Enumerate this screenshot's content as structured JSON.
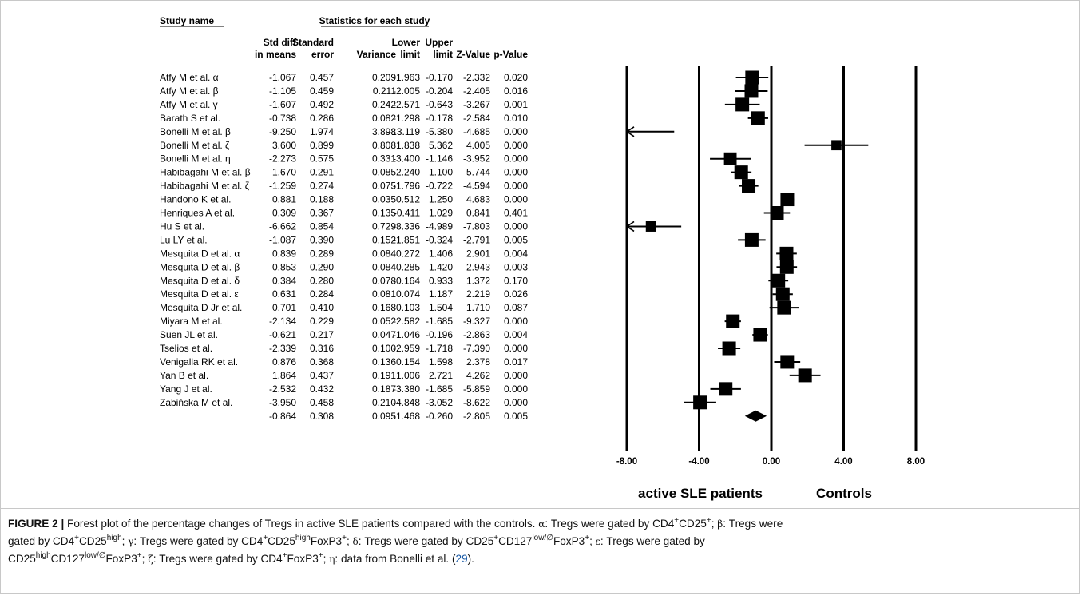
{
  "chart_data": {
    "type": "forest",
    "group_header": "Statistics for each study",
    "study_column_header": "Study name",
    "column_headers": [
      [
        "Std diff",
        "in means"
      ],
      [
        "Standard",
        "error"
      ],
      [
        "",
        "Variance"
      ],
      [
        "Lower",
        "limit"
      ],
      [
        "Upper",
        "limit"
      ],
      [
        "",
        "Z-Value"
      ],
      [
        "",
        "p-Value"
      ]
    ],
    "rows": [
      {
        "study": "Atfy M et al. α",
        "std_diff": "-1.067",
        "se": "0.457",
        "variance": "0.209",
        "lower": "-1.963",
        "upper": "-0.170",
        "z": "-2.332",
        "p": "0.020"
      },
      {
        "study": "Atfy M et al. β",
        "std_diff": "-1.105",
        "se": "0.459",
        "variance": "0.211",
        "lower": "-2.005",
        "upper": "-0.204",
        "z": "-2.405",
        "p": "0.016"
      },
      {
        "study": "Atfy M et al. γ",
        "std_diff": "-1.607",
        "se": "0.492",
        "variance": "0.242",
        "lower": "-2.571",
        "upper": "-0.643",
        "z": "-3.267",
        "p": "0.001"
      },
      {
        "study": "Barath S et al.",
        "std_diff": "-0.738",
        "se": "0.286",
        "variance": "0.082",
        "lower": "-1.298",
        "upper": "-0.178",
        "z": "-2.584",
        "p": "0.010"
      },
      {
        "study": "Bonelli M et al. β",
        "std_diff": "-9.250",
        "se": "1.974",
        "variance": "3.898",
        "lower": "-13.119",
        "upper": "-5.380",
        "z": "-4.685",
        "p": "0.000"
      },
      {
        "study": "Bonelli M et al. ζ",
        "std_diff": "3.600",
        "se": "0.899",
        "variance": "0.808",
        "lower": "1.838",
        "upper": "5.362",
        "z": "4.005",
        "p": "0.000"
      },
      {
        "study": "Bonelli M et al. η",
        "std_diff": "-2.273",
        "se": "0.575",
        "variance": "0.331",
        "lower": "-3.400",
        "upper": "-1.146",
        "z": "-3.952",
        "p": "0.000"
      },
      {
        "study": "Habibagahi M et al. β",
        "std_diff": "-1.670",
        "se": "0.291",
        "variance": "0.085",
        "lower": "-2.240",
        "upper": "-1.100",
        "z": "-5.744",
        "p": "0.000"
      },
      {
        "study": "Habibagahi M et al. ζ",
        "std_diff": "-1.259",
        "se": "0.274",
        "variance": "0.075",
        "lower": "-1.796",
        "upper": "-0.722",
        "z": "-4.594",
        "p": "0.000"
      },
      {
        "study": "Handono K et al.",
        "std_diff": "0.881",
        "se": "0.188",
        "variance": "0.035",
        "lower": "0.512",
        "upper": "1.250",
        "z": "4.683",
        "p": "0.000"
      },
      {
        "study": "Henriques A et al.",
        "std_diff": "0.309",
        "se": "0.367",
        "variance": "0.135",
        "lower": "-0.411",
        "upper": "1.029",
        "z": "0.841",
        "p": "0.401"
      },
      {
        "study": "Hu S et al.",
        "std_diff": "-6.662",
        "se": "0.854",
        "variance": "0.729",
        "lower": "-8.336",
        "upper": "-4.989",
        "z": "-7.803",
        "p": "0.000"
      },
      {
        "study": "Lu LY et al.",
        "std_diff": "-1.087",
        "se": "0.390",
        "variance": "0.152",
        "lower": "-1.851",
        "upper": "-0.324",
        "z": "-2.791",
        "p": "0.005"
      },
      {
        "study": "Mesquita D et al. α",
        "std_diff": "0.839",
        "se": "0.289",
        "variance": "0.084",
        "lower": "0.272",
        "upper": "1.406",
        "z": "2.901",
        "p": "0.004"
      },
      {
        "study": "Mesquita D et al. β",
        "std_diff": "0.853",
        "se": "0.290",
        "variance": "0.084",
        "lower": "0.285",
        "upper": "1.420",
        "z": "2.943",
        "p": "0.003"
      },
      {
        "study": "Mesquita D et al. δ",
        "std_diff": "0.384",
        "se": "0.280",
        "variance": "0.078",
        "lower": "-0.164",
        "upper": "0.933",
        "z": "1.372",
        "p": "0.170"
      },
      {
        "study": "Mesquita D et al. ε",
        "std_diff": "0.631",
        "se": "0.284",
        "variance": "0.081",
        "lower": "0.074",
        "upper": "1.187",
        "z": "2.219",
        "p": "0.026"
      },
      {
        "study": "Mesquita D Jr et al.",
        "std_diff": "0.701",
        "se": "0.410",
        "variance": "0.168",
        "lower": "-0.103",
        "upper": "1.504",
        "z": "1.710",
        "p": "0.087"
      },
      {
        "study": "Miyara M et al.",
        "std_diff": "-2.134",
        "se": "0.229",
        "variance": "0.052",
        "lower": "-2.582",
        "upper": "-1.685",
        "z": "-9.327",
        "p": "0.000"
      },
      {
        "study": "Suen JL et al.",
        "std_diff": "-0.621",
        "se": "0.217",
        "variance": "0.047",
        "lower": "-1.046",
        "upper": "-0.196",
        "z": "-2.863",
        "p": "0.004"
      },
      {
        "study": "Tselios et al.",
        "std_diff": "-2.339",
        "se": "0.316",
        "variance": "0.100",
        "lower": "-2.959",
        "upper": "-1.718",
        "z": "-7.390",
        "p": "0.000"
      },
      {
        "study": "Venigalla RK et al.",
        "std_diff": "0.876",
        "se": "0.368",
        "variance": "0.136",
        "lower": "0.154",
        "upper": "1.598",
        "z": "2.378",
        "p": "0.017"
      },
      {
        "study": "Yan B et al.",
        "std_diff": "1.864",
        "se": "0.437",
        "variance": "0.191",
        "lower": "1.006",
        "upper": "2.721",
        "z": "4.262",
        "p": "0.000"
      },
      {
        "study": "Yang J et al.",
        "std_diff": "-2.532",
        "se": "0.432",
        "variance": "0.187",
        "lower": "-3.380",
        "upper": "-1.685",
        "z": "-5.859",
        "p": "0.000"
      },
      {
        "study": "Zabińska M et al.",
        "std_diff": "-3.950",
        "se": "0.458",
        "variance": "0.210",
        "lower": "-4.848",
        "upper": "-3.052",
        "z": "-8.622",
        "p": "0.000"
      }
    ],
    "pooled": {
      "study": "",
      "std_diff": "-0.864",
      "se": "0.308",
      "variance": "0.095",
      "lower": "-1.468",
      "upper": "-0.260",
      "z": "-2.805",
      "p": "0.005"
    },
    "xlim": [
      -8,
      8
    ],
    "xticks": [
      -8,
      -4,
      0,
      4,
      8
    ],
    "xtick_labels": [
      "-8.00",
      "-4.00",
      "0.00",
      "4.00",
      "8.00"
    ],
    "favours_left": "active SLE patients",
    "favours_right": "Controls"
  },
  "caption": {
    "label": "FIGURE 2 |",
    "line1": {
      "t1": " Forest plot of the percentage changes of Tregs in active SLE patients compared with the controls. ",
      "g1": "α",
      "t2": ": Tregs were gated by CD4",
      "s1": "+",
      "t3": "CD25",
      "s2": "+",
      "t4": "; ",
      "g2": "β",
      "t5": ": Tregs were"
    },
    "line2": {
      "t1": "gated by CD4",
      "s1": "+",
      "t2": "CD25",
      "s2": "high",
      "t3": "; ",
      "g1": "γ",
      "t4": ": Tregs were gated by CD4",
      "s3": "+",
      "t5": "CD25",
      "s4": "high",
      "t6": "FoxP3",
      "s5": "+",
      "t7": "; ",
      "g2": "δ",
      "t8": ": Tregs were gated by CD25",
      "s6": "+",
      "t9": "CD127",
      "s7": "low/∅",
      "t10": "FoxP3",
      "s8": "+",
      "t11": "; ",
      "g3": "ε",
      "t12": ": Tregs were gated by"
    },
    "line3": {
      "t1": "CD25",
      "s1": "high",
      "t2": "CD127",
      "s2": "low/∅",
      "t3": "FoxP3",
      "s3": "+",
      "t4": "; ",
      "g1": "ζ",
      "t5": ": Tregs were gated by CD4",
      "s4": "+",
      "t6": "FoxP3",
      "s5": "+",
      "t7": "; ",
      "g2": "η",
      "t8": ": data from Bonelli et al. (",
      "cite": "29",
      "t9": ")."
    }
  }
}
